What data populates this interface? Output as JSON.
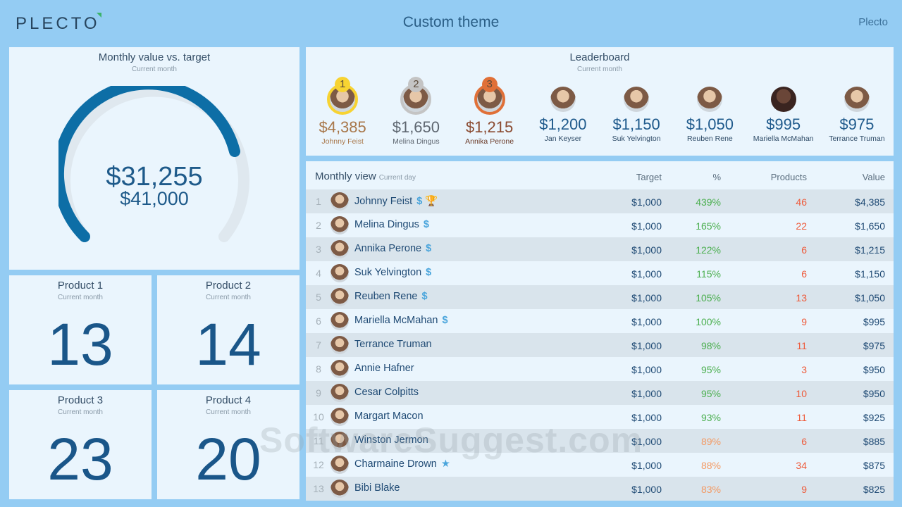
{
  "header": {
    "logo": "PLECTO",
    "title": "Custom theme",
    "user": "Plecto"
  },
  "gauge": {
    "title": "Monthly value vs. target",
    "subtitle": "Current month",
    "value": "$31,255",
    "target": "$41,000",
    "color": "#0d6ea6",
    "track_color": "#dfe8ef"
  },
  "products": [
    {
      "title": "Product 1",
      "subtitle": "Current month",
      "value": "13"
    },
    {
      "title": "Product 2",
      "subtitle": "Current month",
      "value": "14"
    },
    {
      "title": "Product 3",
      "subtitle": "Current month",
      "value": "23"
    },
    {
      "title": "Product 4",
      "subtitle": "Current month",
      "value": "20"
    }
  ],
  "leaderboard": {
    "title": "Leaderboard",
    "subtitle": "Current month",
    "items": [
      {
        "rank": "1",
        "value": "$4,385",
        "name": "Johnny Feist"
      },
      {
        "rank": "2",
        "value": "$1,650",
        "name": "Melina Dingus"
      },
      {
        "rank": "3",
        "value": "$1,215",
        "name": "Annika Perone"
      },
      {
        "value": "$1,200",
        "name": "Jan Keyser"
      },
      {
        "value": "$1,150",
        "name": "Suk Yelvington"
      },
      {
        "value": "$1,050",
        "name": "Reuben Rene"
      },
      {
        "value": "$995",
        "name": "Mariella McMahan"
      },
      {
        "value": "$975",
        "name": "Terrance Truman"
      }
    ]
  },
  "table": {
    "title": "Monthly view",
    "subtitle": "Current day",
    "columns": {
      "target": "Target",
      "pct": "%",
      "products": "Products",
      "value": "Value"
    },
    "rows": [
      {
        "rank": "1",
        "name": "Johnny Feist",
        "icons": "$ 🏆",
        "target": "$1,000",
        "pct": "439%",
        "products": "46",
        "value": "$4,385"
      },
      {
        "rank": "2",
        "name": "Melina Dingus",
        "icons": "$",
        "target": "$1,000",
        "pct": "165%",
        "products": "22",
        "value": "$1,650"
      },
      {
        "rank": "3",
        "name": "Annika Perone",
        "icons": "$",
        "target": "$1,000",
        "pct": "122%",
        "products": "6",
        "value": "$1,215"
      },
      {
        "rank": "4",
        "name": "Suk Yelvington",
        "icons": "$",
        "target": "$1,000",
        "pct": "115%",
        "products": "6",
        "value": "$1,150"
      },
      {
        "rank": "5",
        "name": "Reuben Rene",
        "icons": "$",
        "target": "$1,000",
        "pct": "105%",
        "products": "13",
        "value": "$1,050"
      },
      {
        "rank": "6",
        "name": "Mariella McMahan",
        "icons": "$",
        "target": "$1,000",
        "pct": "100%",
        "products": "9",
        "value": "$995"
      },
      {
        "rank": "7",
        "name": "Terrance Truman",
        "icons": "",
        "target": "$1,000",
        "pct": "98%",
        "products": "11",
        "value": "$975"
      },
      {
        "rank": "8",
        "name": "Annie Hafner",
        "icons": "",
        "target": "$1,000",
        "pct": "95%",
        "products": "3",
        "value": "$950"
      },
      {
        "rank": "9",
        "name": "Cesar Colpitts",
        "icons": "",
        "target": "$1,000",
        "pct": "95%",
        "products": "10",
        "value": "$950"
      },
      {
        "rank": "10",
        "name": "Margart Macon",
        "icons": "",
        "target": "$1,000",
        "pct": "93%",
        "products": "11",
        "value": "$925"
      },
      {
        "rank": "11",
        "name": "Winston Jermon",
        "icons": "",
        "target": "$1,000",
        "pct": "89%",
        "products": "6",
        "value": "$885"
      },
      {
        "rank": "12",
        "name": "Charmaine Drown",
        "icons": "★",
        "target": "$1,000",
        "pct": "88%",
        "products": "34",
        "value": "$875"
      },
      {
        "rank": "13",
        "name": "Bibi Blake",
        "icons": "",
        "target": "$1,000",
        "pct": "83%",
        "products": "9",
        "value": "$825"
      }
    ]
  },
  "watermark": "SoftwareSuggest.com"
}
